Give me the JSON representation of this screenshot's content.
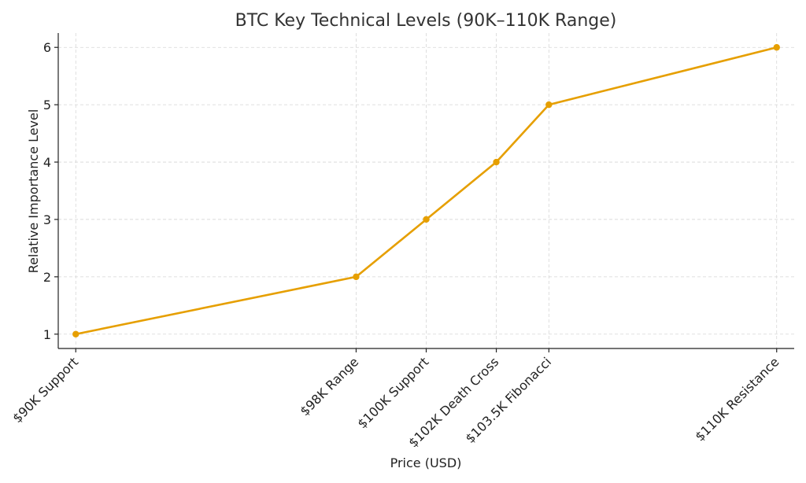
{
  "chart_data": {
    "type": "line",
    "title": "BTC Key Technical Levels (90K–110K Range)",
    "xlabel": "Price (USD)",
    "ylabel": "Relative Importance Level",
    "x": [
      90000,
      98000,
      100000,
      102000,
      103500,
      110000
    ],
    "x_tick_labels": [
      "$90K Support",
      "$98K Range",
      "$100K Support",
      "$102K Death Cross",
      "$103.5K Fibonacci",
      "$110K Resistance"
    ],
    "y_ticks": [
      1,
      2,
      3,
      4,
      5,
      6
    ],
    "ylim": [
      0.75,
      6.25
    ],
    "xlim": [
      89500,
      110500
    ],
    "grid": true,
    "series": [
      {
        "values": [
          1,
          2,
          3,
          4,
          5,
          6
        ],
        "color": "#e69f00"
      }
    ]
  }
}
